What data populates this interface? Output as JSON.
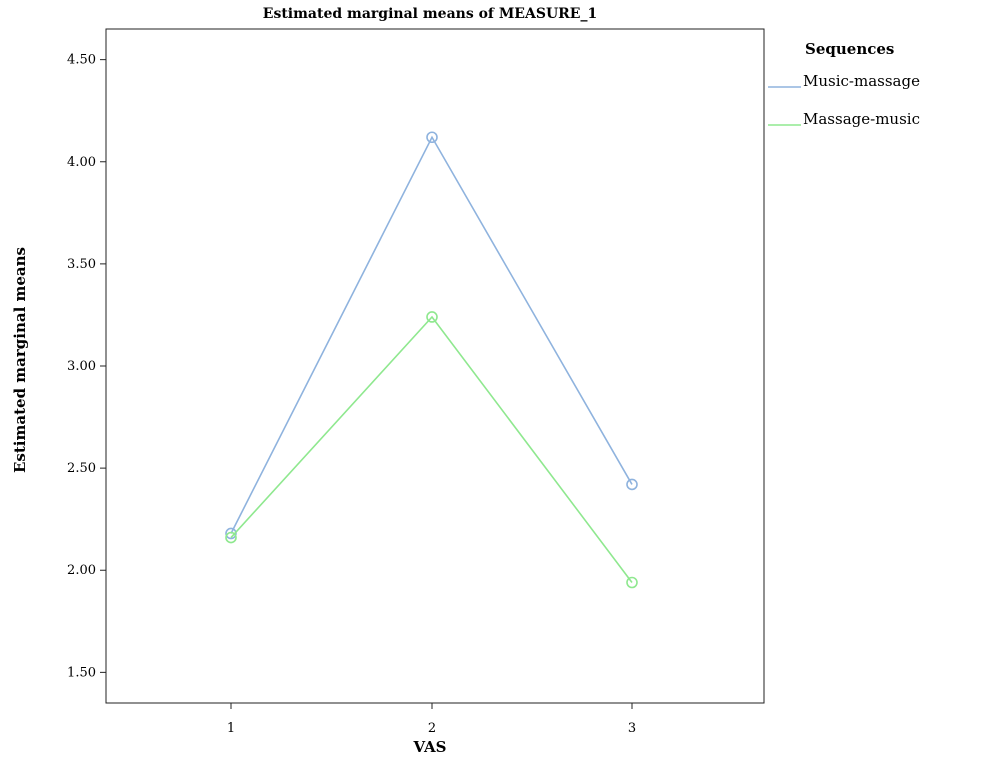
{
  "chart_data": {
    "type": "line",
    "title": "Estimated marginal means of MEASURE_1",
    "xlabel": "VAS",
    "ylabel": "Estimated marginal means",
    "categories": [
      "1",
      "2",
      "3"
    ],
    "ylim": [
      1.35,
      4.65
    ],
    "yticks": [
      "1.50",
      "2.00",
      "2.50",
      "3.00",
      "3.50",
      "4.00",
      "4.50"
    ],
    "grid": false,
    "legend": {
      "title": "Sequences",
      "position": "right"
    },
    "series": [
      {
        "name": "Music-massage",
        "color": "#8fb3de",
        "values": [
          2.18,
          4.12,
          2.42
        ],
        "marker": "circle-open"
      },
      {
        "name": "Massage-music",
        "color": "#8fe88f",
        "values": [
          2.16,
          3.24,
          1.94
        ],
        "marker": "circle-open"
      }
    ]
  }
}
